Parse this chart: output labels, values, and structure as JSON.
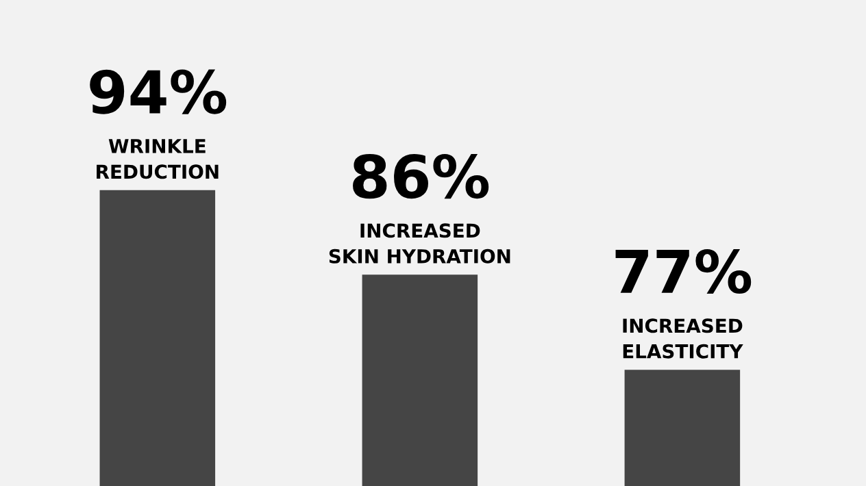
{
  "chart_data": {
    "type": "bar",
    "categories": [
      "WRINKLE\nREDUCTION",
      "INCREASED\nSKIN HYDRATION",
      "INCREASED\nELASTICITY"
    ],
    "values": [
      94,
      86,
      77
    ],
    "value_labels": [
      "94%",
      "86%",
      "77%"
    ],
    "color": "#454545",
    "ylim": [
      66,
      112
    ]
  }
}
